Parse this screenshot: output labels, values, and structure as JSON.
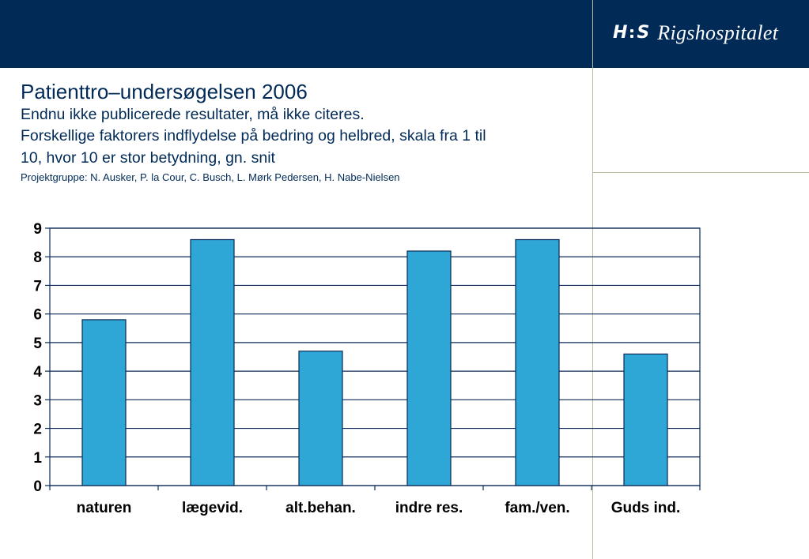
{
  "header": {
    "logo_h": "H",
    "logo_s": "S",
    "logo_name": "Rigshospitalet"
  },
  "title": "Patienttro–undersøgelsen 2006",
  "subtitle": "Endnu ikke publicerede resultater, må ikke citeres.",
  "description_line1": "Forskellige faktorers indflydelse på bedring og helbred, skala fra 1 til",
  "description_line2": "10, hvor 10 er stor betydning, gn. snit",
  "project_group": "Projektgruppe: N. Ausker, P. la Cour, C. Busch, L. Mørk Pedersen, H. Nabe-Nielsen",
  "colors": {
    "header": "#012a57",
    "bar_fill": "#2ea6d6",
    "bar_stroke": "#0b2a57",
    "grid": "#0b2a57"
  },
  "chart_data": {
    "type": "bar",
    "categories": [
      "naturen",
      "lægevid.",
      "alt.behan.",
      "indre res.",
      "fam./ven.",
      "Guds ind."
    ],
    "values": [
      5.8,
      8.6,
      4.7,
      8.2,
      8.6,
      4.6
    ],
    "xlabel": "",
    "ylabel": "",
    "ylim": [
      0,
      9
    ],
    "yticks": [
      0,
      1,
      2,
      3,
      4,
      5,
      6,
      7,
      8,
      9
    ],
    "grid": true,
    "legend": false
  }
}
